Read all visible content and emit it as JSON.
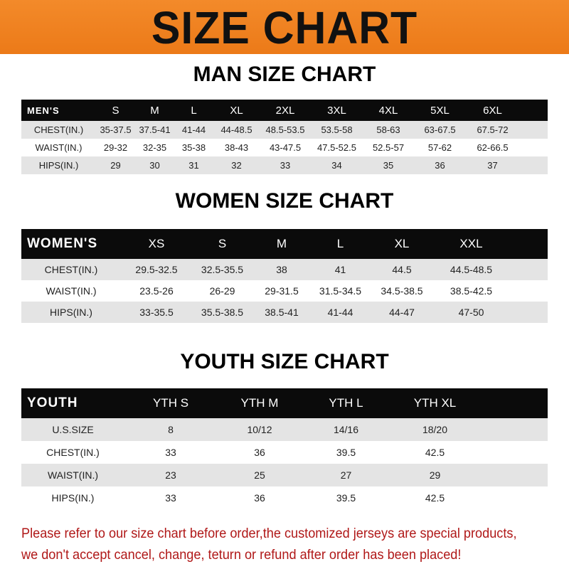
{
  "banner": {
    "title": "SIZE CHART",
    "color": "#ee7f1e"
  },
  "men": {
    "title": "MAN SIZE CHART",
    "header": [
      "MEN'S",
      "S",
      "M",
      "L",
      "XL",
      "2XL",
      "3XL",
      "4XL",
      "5XL",
      "6XL"
    ],
    "rows": [
      [
        "CHEST(IN.)",
        "35-37.5",
        "37.5-41",
        "41-44",
        "44-48.5",
        "48.5-53.5",
        "53.5-58",
        "58-63",
        "63-67.5",
        "67.5-72"
      ],
      [
        "WAIST(IN.)",
        "29-32",
        "32-35",
        "35-38",
        "38-43",
        "43-47.5",
        "47.5-52.5",
        "52.5-57",
        "57-62",
        "62-66.5"
      ],
      [
        "HIPS(IN.)",
        "29",
        "30",
        "31",
        "32",
        "33",
        "34",
        "35",
        "36",
        "37"
      ]
    ]
  },
  "women": {
    "title": "WOMEN SIZE CHART",
    "header": [
      "WOMEN'S",
      "XS",
      "S",
      "M",
      "L",
      "XL",
      "XXL"
    ],
    "rows": [
      [
        "CHEST(IN.)",
        "29.5-32.5",
        "32.5-35.5",
        "38",
        "41",
        "44.5",
        "44.5-48.5"
      ],
      [
        "WAIST(IN.)",
        "23.5-26",
        "26-29",
        "29-31.5",
        "31.5-34.5",
        "34.5-38.5",
        "38.5-42.5"
      ],
      [
        "HIPS(IN.)",
        "33-35.5",
        "35.5-38.5",
        "38.5-41",
        "41-44",
        "44-47",
        "47-50"
      ]
    ]
  },
  "youth": {
    "title": "YOUTH SIZE CHART",
    "header": [
      "YOUTH",
      "YTH S",
      "YTH M",
      "YTH L",
      "YTH XL"
    ],
    "rows": [
      [
        "U.S.SIZE",
        "8",
        "10/12",
        "14/16",
        "18/20"
      ],
      [
        "CHEST(IN.)",
        "33",
        "36",
        "39.5",
        "42.5"
      ],
      [
        "WAIST(IN.)",
        "23",
        "25",
        "27",
        "29"
      ],
      [
        "HIPS(IN.)",
        "33",
        "36",
        "39.5",
        "42.5"
      ]
    ]
  },
  "notice": {
    "line1": "Please refer to our size chart before order,the customized jerseys are special products,",
    "line2": "we don't accept cancel, change, teturn or refund after order has been placed!",
    "color": "#b01818"
  }
}
